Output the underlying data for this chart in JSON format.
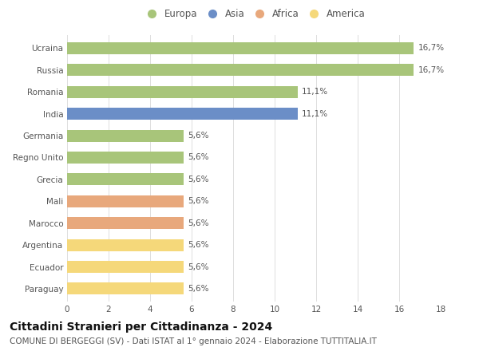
{
  "categories": [
    "Ucraina",
    "Russia",
    "Romania",
    "India",
    "Germania",
    "Regno Unito",
    "Grecia",
    "Mali",
    "Marocco",
    "Argentina",
    "Ecuador",
    "Paraguay"
  ],
  "values": [
    16.7,
    16.7,
    11.1,
    11.1,
    5.6,
    5.6,
    5.6,
    5.6,
    5.6,
    5.6,
    5.6,
    5.6
  ],
  "labels": [
    "16,7%",
    "16,7%",
    "11,1%",
    "11,1%",
    "5,6%",
    "5,6%",
    "5,6%",
    "5,6%",
    "5,6%",
    "5,6%",
    "5,6%",
    "5,6%"
  ],
  "colors": [
    "#a8c57a",
    "#a8c57a",
    "#a8c57a",
    "#6b8ec7",
    "#a8c57a",
    "#a8c57a",
    "#a8c57a",
    "#e8a87c",
    "#e8a87c",
    "#f5d87a",
    "#f5d87a",
    "#f5d87a"
  ],
  "legend": [
    {
      "label": "Europa",
      "color": "#a8c57a"
    },
    {
      "label": "Asia",
      "color": "#6b8ec7"
    },
    {
      "label": "Africa",
      "color": "#e8a87c"
    },
    {
      "label": "America",
      "color": "#f5d87a"
    }
  ],
  "xlim": [
    0,
    18
  ],
  "xticks": [
    0,
    2,
    4,
    6,
    8,
    10,
    12,
    14,
    16,
    18
  ],
  "title": "Cittadini Stranieri per Cittadinanza - 2024",
  "subtitle": "COMUNE DI BERGEGGI (SV) - Dati ISTAT al 1° gennaio 2024 - Elaborazione TUTTITALIA.IT",
  "background_color": "#ffffff",
  "grid_color": "#dddddd",
  "bar_height": 0.55,
  "title_fontsize": 10,
  "subtitle_fontsize": 7.5,
  "label_fontsize": 7.5,
  "tick_fontsize": 7.5,
  "legend_fontsize": 8.5
}
